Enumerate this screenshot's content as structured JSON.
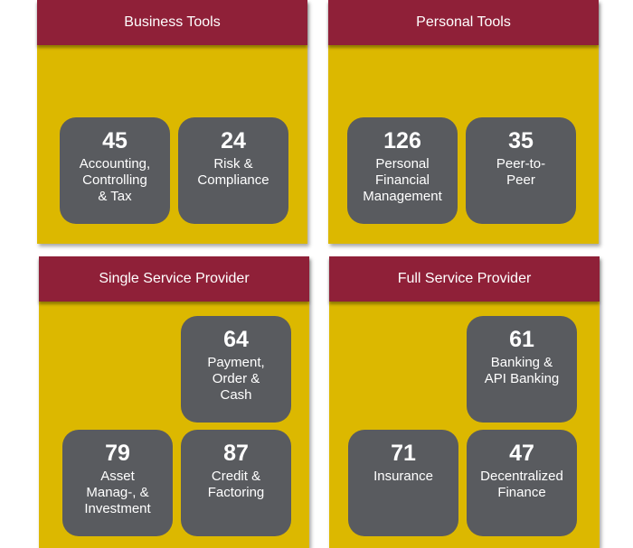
{
  "panels": [
    {
      "title": "Business Tools",
      "tiles": [
        {
          "number": "45",
          "label": "Accounting,\nControlling\n& Tax"
        },
        {
          "number": "24",
          "label": "Risk &\nCompliance"
        }
      ]
    },
    {
      "title": "Personal Tools",
      "tiles": [
        {
          "number": "126",
          "label": "Personal\nFinancial\nManagement"
        },
        {
          "number": "35",
          "label": "Peer-to-\nPeer"
        }
      ]
    },
    {
      "title": "Single Service Provider",
      "tiles": [
        {
          "number": "64",
          "label": "Payment,\nOrder &\nCash"
        },
        {
          "number": "79",
          "label": "Asset\nManag-, &\nInvestment"
        },
        {
          "number": "87",
          "label": "Credit &\nFactoring"
        }
      ]
    },
    {
      "title": "Full Service Provider",
      "tiles": [
        {
          "number": "61",
          "label": "Banking &\nAPI Banking"
        },
        {
          "number": "71",
          "label": "Insurance"
        },
        {
          "number": "47",
          "label": "Decentralized\nFinance"
        }
      ]
    }
  ]
}
